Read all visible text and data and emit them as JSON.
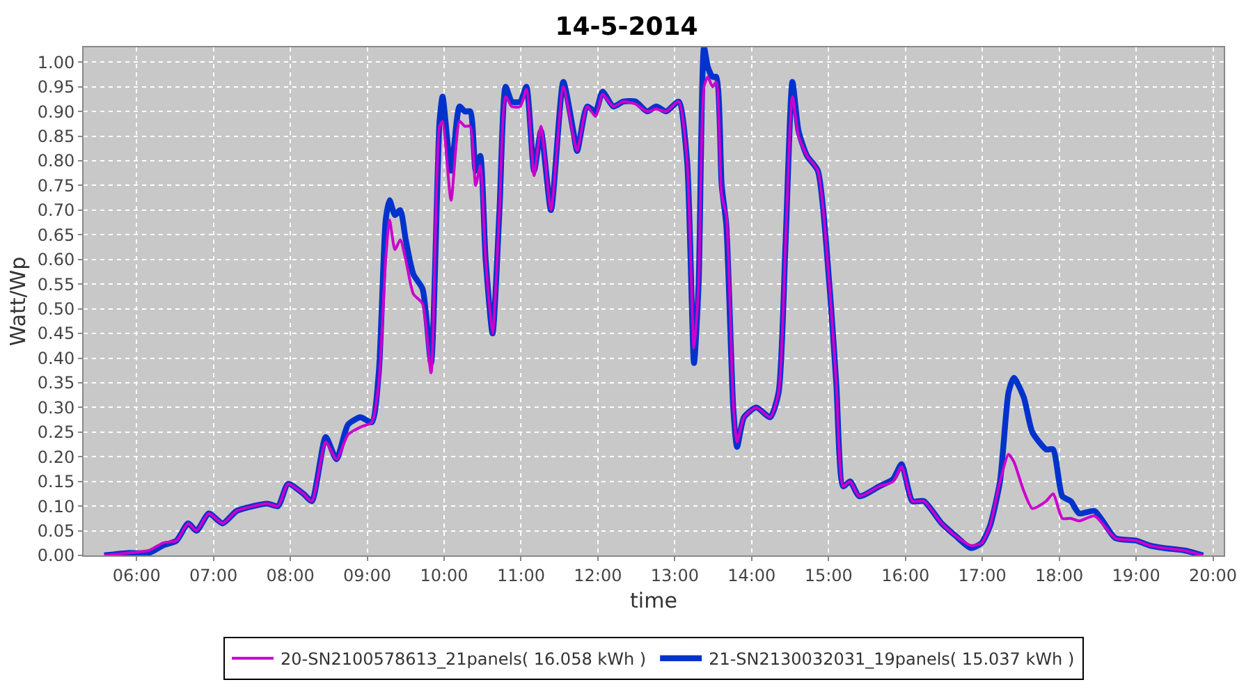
{
  "chart_data": {
    "type": "line",
    "title": "14-5-2014",
    "xlabel": "time",
    "ylabel": "Watt/Wp",
    "x": [
      5.58,
      5.9,
      6.16,
      6.34,
      6.52,
      6.67,
      6.78,
      6.94,
      7.12,
      7.3,
      7.52,
      7.7,
      7.84,
      7.97,
      8.17,
      8.28,
      8.46,
      8.6,
      8.75,
      8.91,
      9.06,
      9.15,
      9.24,
      9.29,
      9.36,
      9.43,
      9.5,
      9.6,
      9.72,
      9.83,
      9.94,
      9.98,
      10.09,
      10.2,
      10.27,
      10.34,
      10.41,
      10.47,
      10.54,
      10.63,
      10.72,
      10.8,
      10.88,
      10.99,
      11.07,
      11.17,
      11.26,
      11.39,
      11.55,
      11.68,
      11.73,
      11.86,
      11.97,
      12.06,
      12.2,
      12.33,
      12.49,
      12.64,
      12.76,
      12.89,
      13.05,
      13.16,
      13.25,
      13.31,
      13.38,
      13.43,
      13.49,
      13.54,
      13.61,
      13.67,
      13.76,
      13.81,
      13.9,
      14.06,
      14.24,
      14.35,
      14.44,
      14.53,
      14.61,
      14.72,
      14.86,
      15.01,
      15.1,
      15.19,
      15.28,
      15.4,
      15.66,
      15.84,
      15.95,
      16.09,
      16.24,
      16.47,
      16.65,
      16.85,
      16.99,
      17.1,
      17.23,
      17.34,
      17.41,
      17.54,
      17.65,
      17.83,
      17.92,
      18.04,
      18.15,
      18.26,
      18.46,
      18.73,
      19.0,
      19.18,
      19.36,
      19.63,
      19.87
    ],
    "series": [
      {
        "name": "20-SN2100578613_21panels( 16.058 kWh )",
        "color": "#cc00cc",
        "values": [
          0.0,
          0.005,
          0.01,
          0.025,
          0.03,
          0.065,
          0.05,
          0.085,
          0.065,
          0.09,
          0.1,
          0.105,
          0.1,
          0.145,
          0.125,
          0.11,
          0.23,
          0.195,
          0.245,
          0.26,
          0.27,
          0.35,
          0.6,
          0.68,
          0.62,
          0.64,
          0.6,
          0.53,
          0.51,
          0.37,
          0.87,
          0.88,
          0.72,
          0.88,
          0.87,
          0.87,
          0.75,
          0.79,
          0.6,
          0.45,
          0.7,
          0.93,
          0.91,
          0.91,
          0.945,
          0.77,
          0.87,
          0.7,
          0.95,
          0.85,
          0.82,
          0.91,
          0.89,
          0.935,
          0.91,
          0.92,
          0.915,
          0.9,
          0.905,
          0.9,
          0.92,
          0.8,
          0.42,
          0.55,
          0.95,
          0.97,
          0.95,
          0.96,
          0.73,
          0.69,
          0.31,
          0.23,
          0.28,
          0.3,
          0.28,
          0.33,
          0.63,
          0.93,
          0.85,
          0.81,
          0.78,
          0.55,
          0.35,
          0.14,
          0.15,
          0.12,
          0.14,
          0.15,
          0.18,
          0.11,
          0.11,
          0.065,
          0.04,
          0.02,
          0.025,
          0.06,
          0.15,
          0.205,
          0.19,
          0.13,
          0.095,
          0.11,
          0.125,
          0.075,
          0.075,
          0.07,
          0.08,
          0.035,
          0.03,
          0.02,
          0.015,
          0.01,
          0.0
        ]
      },
      {
        "name": "21-SN2130032031_19panels( 15.037 kWh )",
        "color": "#0033cc",
        "values": [
          0.0,
          0.005,
          0.005,
          0.02,
          0.03,
          0.065,
          0.05,
          0.085,
          0.065,
          0.09,
          0.1,
          0.105,
          0.1,
          0.145,
          0.125,
          0.11,
          0.24,
          0.195,
          0.265,
          0.28,
          0.27,
          0.37,
          0.68,
          0.72,
          0.69,
          0.7,
          0.64,
          0.57,
          0.54,
          0.39,
          0.88,
          0.93,
          0.78,
          0.91,
          0.9,
          0.9,
          0.78,
          0.81,
          0.6,
          0.45,
          0.7,
          0.95,
          0.92,
          0.92,
          0.95,
          0.78,
          0.86,
          0.7,
          0.96,
          0.86,
          0.82,
          0.91,
          0.9,
          0.94,
          0.91,
          0.92,
          0.92,
          0.9,
          0.91,
          0.9,
          0.92,
          0.8,
          0.39,
          0.55,
          1.03,
          0.99,
          0.97,
          0.97,
          0.75,
          0.67,
          0.3,
          0.22,
          0.28,
          0.3,
          0.28,
          0.33,
          0.63,
          0.96,
          0.86,
          0.81,
          0.78,
          0.55,
          0.35,
          0.14,
          0.15,
          0.12,
          0.14,
          0.155,
          0.185,
          0.11,
          0.11,
          0.065,
          0.04,
          0.015,
          0.025,
          0.06,
          0.15,
          0.33,
          0.36,
          0.32,
          0.25,
          0.215,
          0.215,
          0.12,
          0.11,
          0.085,
          0.09,
          0.035,
          0.03,
          0.02,
          0.015,
          0.01,
          0.0
        ]
      }
    ],
    "xlim": [
      5.31,
      20.14
    ],
    "ylim": [
      0,
      1.03
    ],
    "xticks": [
      {
        "value": 6,
        "label": "06:00"
      },
      {
        "value": 7,
        "label": "07:00"
      },
      {
        "value": 8,
        "label": "08:00"
      },
      {
        "value": 9,
        "label": "09:00"
      },
      {
        "value": 10,
        "label": "10:00"
      },
      {
        "value": 11,
        "label": "11:00"
      },
      {
        "value": 12,
        "label": "12:00"
      },
      {
        "value": 13,
        "label": "13:00"
      },
      {
        "value": 14,
        "label": "14:00"
      },
      {
        "value": 15,
        "label": "15:00"
      },
      {
        "value": 16,
        "label": "16:00"
      },
      {
        "value": 17,
        "label": "17:00"
      },
      {
        "value": 18,
        "label": "18:00"
      },
      {
        "value": 19,
        "label": "19:00"
      },
      {
        "value": 20,
        "label": "20:00"
      }
    ],
    "yticks": [
      {
        "value": 0,
        "label": "0.00"
      },
      {
        "value": 0.05,
        "label": "0.05"
      },
      {
        "value": 0.1,
        "label": "0.10"
      },
      {
        "value": 0.15,
        "label": "0.15"
      },
      {
        "value": 0.2,
        "label": "0.20"
      },
      {
        "value": 0.25,
        "label": "0.25"
      },
      {
        "value": 0.3,
        "label": "0.30"
      },
      {
        "value": 0.35,
        "label": "0.35"
      },
      {
        "value": 0.4,
        "label": "0.40"
      },
      {
        "value": 0.45,
        "label": "0.45"
      },
      {
        "value": 0.5,
        "label": "0.50"
      },
      {
        "value": 0.55,
        "label": "0.55"
      },
      {
        "value": 0.6,
        "label": "0.60"
      },
      {
        "value": 0.65,
        "label": "0.65"
      },
      {
        "value": 0.7,
        "label": "0.70"
      },
      {
        "value": 0.75,
        "label": "0.75"
      },
      {
        "value": 0.8,
        "label": "0.80"
      },
      {
        "value": 0.85,
        "label": "0.85"
      },
      {
        "value": 0.9,
        "label": "0.90"
      },
      {
        "value": 0.95,
        "label": "0.95"
      },
      {
        "value": 1.0,
        "label": "1.00"
      }
    ],
    "grid": true,
    "legend": "bottom",
    "line_style": "solid"
  }
}
